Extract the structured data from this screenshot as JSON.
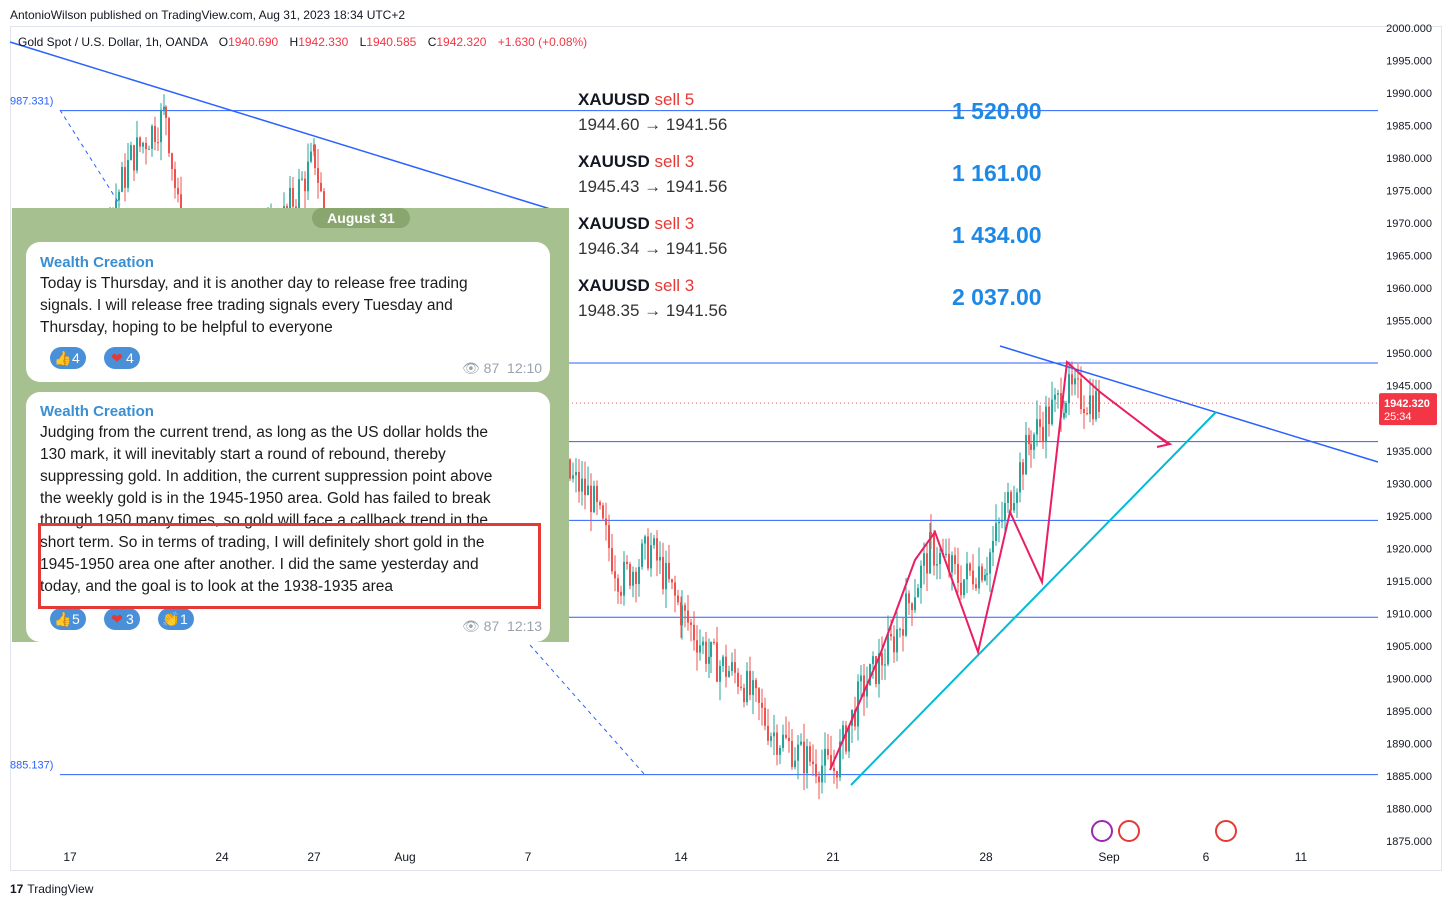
{
  "header": {
    "publisher_line": "AntonioWilson published on TradingView.com, Aug 31, 2023 18:34 UTC+2"
  },
  "legend": {
    "symbol": "Gold Spot / U.S. Dollar, 1h, OANDA",
    "o_label": "O",
    "o_value": "1940.690",
    "h_label": "H",
    "h_value": "1942.330",
    "l_label": "L",
    "l_value": "1940.585",
    "c_label": "C",
    "c_value": "1942.320",
    "change": "+1.630 (+0.08%)"
  },
  "trades": [
    {
      "symbol": "XAUUSD",
      "action": "sell 5",
      "range": "1944.60 → 1941.56",
      "profit": "1 520.00"
    },
    {
      "symbol": "XAUUSD",
      "action": "sell 3",
      "range": "1945.43 → 1941.56",
      "profit": "1 161.00"
    },
    {
      "symbol": "XAUUSD",
      "action": "sell 3",
      "range": "1946.34 → 1941.56",
      "profit": "1 434.00"
    },
    {
      "symbol": "XAUUSD",
      "action": "sell 3",
      "range": "1948.35 → 1941.56",
      "profit": "2 037.00"
    }
  ],
  "telegram": {
    "date_chip": "August 31",
    "messages": [
      {
        "sender": "Wealth Creation",
        "lines": [
          "Today is Thursday, and it is another day to release free trading",
          "signals. I will release free trading signals every Tuesday and",
          "Thursday, hoping to be helpful to everyone"
        ],
        "reactions": [
          {
            "icon": "thumbs-up-icon",
            "glyph": "👍",
            "count": "4"
          },
          {
            "icon": "heart-icon",
            "glyph": "❤",
            "count": "4"
          }
        ],
        "views": "87",
        "time": "12:10"
      },
      {
        "sender": "Wealth Creation",
        "lines": [
          "Judging from the current trend, as long as the US dollar holds the",
          "130 mark, it will inevitably start a round of rebound, thereby",
          "suppressing gold. In addition, the current suppression point above",
          "the weekly gold is in the 1945-1950 area. Gold has failed to break",
          "through 1950 many times, so gold will face a callback trend in the",
          "short term. So in terms of trading, I will definitely short gold in the",
          "1945-1950 area one after another. I did the same yesterday and",
          "today, and the goal is to look at the 1938-1935 area"
        ],
        "reactions": [
          {
            "icon": "thumbs-up-icon",
            "glyph": "👍",
            "count": "5"
          },
          {
            "icon": "heart-icon",
            "glyph": "❤",
            "count": "3"
          },
          {
            "icon": "clap-icon",
            "glyph": "👏",
            "count": "1"
          }
        ],
        "views": "87",
        "time": "12:13"
      }
    ]
  },
  "price_badge": {
    "price": "1942.320",
    "countdown": "25:34",
    "color": "#f23645"
  },
  "fib_labels": {
    "top": "987.331)",
    "bottom": "885.137)"
  },
  "footer": {
    "brand": "TradingView",
    "logo_text": "17"
  },
  "colors": {
    "trendline": "#2962ff",
    "support": "#00bcd4",
    "zigzag": "#e91e63",
    "up_candle": "#26a69a",
    "down_candle": "#ef5350",
    "hline": "#2962ff"
  },
  "chart_data": {
    "type": "candlestick",
    "title": "Gold Spot / U.S. Dollar, 1h, OANDA",
    "xlabel": "",
    "ylabel": "",
    "x_ticks": [
      "17",
      "24",
      "27",
      "Aug",
      "7",
      "14",
      "21",
      "28",
      "Sep",
      "6",
      "11"
    ],
    "y_ticks": [
      1875,
      1880,
      1885,
      1890,
      1895,
      1900,
      1905,
      1910,
      1915,
      1920,
      1925,
      1930,
      1935,
      1940,
      1945,
      1950,
      1955,
      1960,
      1965,
      1970,
      1975,
      1980,
      1985,
      1990,
      1995,
      2000
    ],
    "ylim": [
      1875,
      2000
    ],
    "horizontal_levels": [
      1987.3,
      1948.5,
      1936.4,
      1924.3,
      1909.4,
      1885.2
    ],
    "last_price": 1942.32,
    "price_path": [
      {
        "date": "Jul 14",
        "price": 1958
      },
      {
        "date": "Jul 17",
        "price": 1955
      },
      {
        "date": "Jul 19",
        "price": 1980
      },
      {
        "date": "Jul 20",
        "price": 1987
      },
      {
        "date": "Jul 21",
        "price": 1962
      },
      {
        "date": "Jul 24",
        "price": 1958
      },
      {
        "date": "Jul 26",
        "price": 1970
      },
      {
        "date": "Jul 27",
        "price": 1980
      },
      {
        "date": "Jul 28",
        "price": 1955
      },
      {
        "date": "Aug 1",
        "price": 1948
      },
      {
        "date": "Aug 7",
        "price": 1935
      },
      {
        "date": "Aug 8",
        "price": 1932
      },
      {
        "date": "Aug 9",
        "price": 1928
      },
      {
        "date": "Aug 10",
        "price": 1915
      },
      {
        "date": "Aug 11",
        "price": 1920
      },
      {
        "date": "Aug 14",
        "price": 1910
      },
      {
        "date": "Aug 15",
        "price": 1903
      },
      {
        "date": "Aug 16",
        "price": 1900
      },
      {
        "date": "Aug 17",
        "price": 1892
      },
      {
        "date": "Aug 18",
        "price": 1888
      },
      {
        "date": "Aug 21",
        "price": 1886
      },
      {
        "date": "Aug 22",
        "price": 1898
      },
      {
        "date": "Aug 23",
        "price": 1905
      },
      {
        "date": "Aug 24",
        "price": 1920
      },
      {
        "date": "Aug 25",
        "price": 1915
      },
      {
        "date": "Aug 28",
        "price": 1918
      },
      {
        "date": "Aug 29",
        "price": 1937
      },
      {
        "date": "Aug 30",
        "price": 1944
      },
      {
        "date": "Aug 31",
        "price": 1942.32
      }
    ]
  }
}
